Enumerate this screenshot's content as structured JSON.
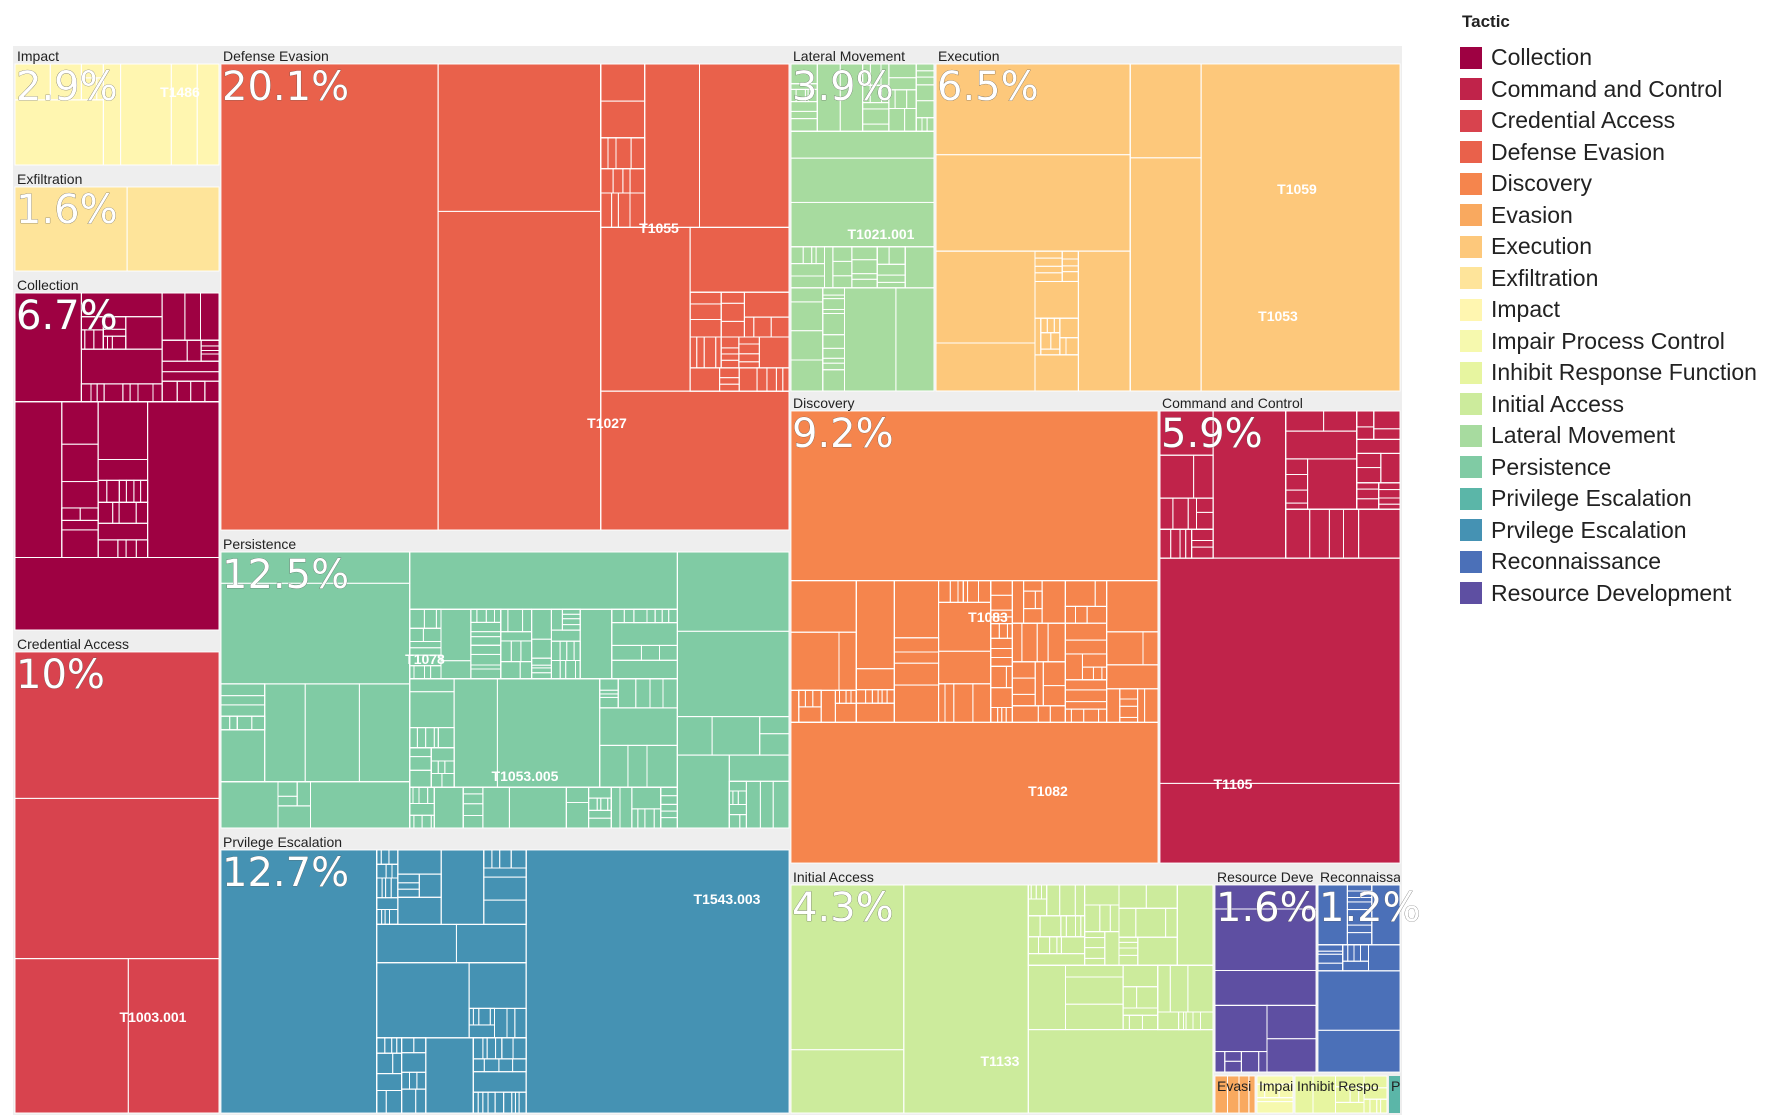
{
  "legend": {
    "title": "Tactic",
    "items": [
      {
        "label": "Collection",
        "color": "#9e0142"
      },
      {
        "label": "Command and Control",
        "color": "#c0234a"
      },
      {
        "label": "Credential Access",
        "color": "#d8434e"
      },
      {
        "label": "Defense Evasion",
        "color": "#e9614b"
      },
      {
        "label": "Discovery",
        "color": "#f5854d"
      },
      {
        "label": "Evasion",
        "color": "#f9a95f"
      },
      {
        "label": "Execution",
        "color": "#fdc87b"
      },
      {
        "label": "Exfiltration",
        "color": "#fee49a"
      },
      {
        "label": "Impact",
        "color": "#fff6b0"
      },
      {
        "label": "Impair Process Control",
        "color": "#f6f9ae"
      },
      {
        "label": "Inhibit Response Function",
        "color": "#e7f5a0"
      },
      {
        "label": "Initial Access",
        "color": "#cceb9c"
      },
      {
        "label": "Lateral Movement",
        "color": "#a7db9f"
      },
      {
        "label": "Persistence",
        "color": "#80cba4"
      },
      {
        "label": "Privilege Escalation",
        "color": "#5bb6a8"
      },
      {
        "label": "Prvilege Escalation",
        "color": "#4592b3"
      },
      {
        "label": "Reconnaissance",
        "color": "#4b70b8"
      },
      {
        "label": "Resource Development",
        "color": "#5e4fa2"
      }
    ]
  },
  "chart_data": {
    "type": "treemap",
    "legend_title": "Tactic",
    "legend_position": "right",
    "groups": [
      {
        "name": "Impact",
        "percent": "2.9%",
        "value": 2.9,
        "color": "#fff6b0",
        "techniques": [
          "T1486"
        ]
      },
      {
        "name": "Exfiltration",
        "percent": "1.6%",
        "value": 1.6,
        "color": "#fee49a",
        "techniques": []
      },
      {
        "name": "Collection",
        "percent": "6.7%",
        "value": 6.7,
        "color": "#9e0142",
        "techniques": []
      },
      {
        "name": "Credential Access",
        "percent": "10%",
        "value": 10,
        "color": "#d8434e",
        "techniques": [
          "T1003.001"
        ]
      },
      {
        "name": "Defense Evasion",
        "percent": "20.1%",
        "value": 20.1,
        "color": "#e9614b",
        "techniques": [
          "T1055",
          "T1027"
        ]
      },
      {
        "name": "Persistence",
        "percent": "12.5%",
        "value": 12.5,
        "color": "#80cba4",
        "techniques": [
          "T1078",
          "T1053.005"
        ]
      },
      {
        "name": "Prvilege Escalation",
        "percent": "12.7%",
        "value": 12.7,
        "color": "#4592b3",
        "techniques": [
          "T1543.003"
        ]
      },
      {
        "name": "Lateral Movement",
        "percent": "3.9%",
        "value": 3.9,
        "color": "#a7db9f",
        "techniques": [
          "T1021.001"
        ]
      },
      {
        "name": "Execution",
        "percent": "6.5%",
        "value": 6.5,
        "color": "#fdc87b",
        "techniques": [
          "T1059",
          "T1053"
        ]
      },
      {
        "name": "Discovery",
        "percent": "9.2%",
        "value": 9.2,
        "color": "#f5854d",
        "techniques": [
          "T1083",
          "T1082"
        ]
      },
      {
        "name": "Command and Control",
        "percent": "5.9%",
        "value": 5.9,
        "color": "#c0234a",
        "techniques": [
          "T1105"
        ]
      },
      {
        "name": "Initial Access",
        "percent": "4.3%",
        "value": 4.3,
        "color": "#cceb9c",
        "techniques": [
          "T1133"
        ]
      },
      {
        "name": "Resource Deve",
        "percent": "1.6%",
        "value": 1.6,
        "color": "#5e4fa2",
        "techniques": []
      },
      {
        "name": "Reconnaissa",
        "percent": "1.2%",
        "value": 1.2,
        "color": "#4b70b8",
        "techniques": []
      },
      {
        "name": "Evasi",
        "color": "#f9a95f",
        "techniques": []
      },
      {
        "name": "Impai",
        "color": "#f6f9ae",
        "techniques": []
      },
      {
        "name": "Inhibit Respo",
        "color": "#e7f5a0",
        "techniques": []
      },
      {
        "name": "Pri",
        "color": "#5bb6a8",
        "techniques": []
      }
    ]
  }
}
